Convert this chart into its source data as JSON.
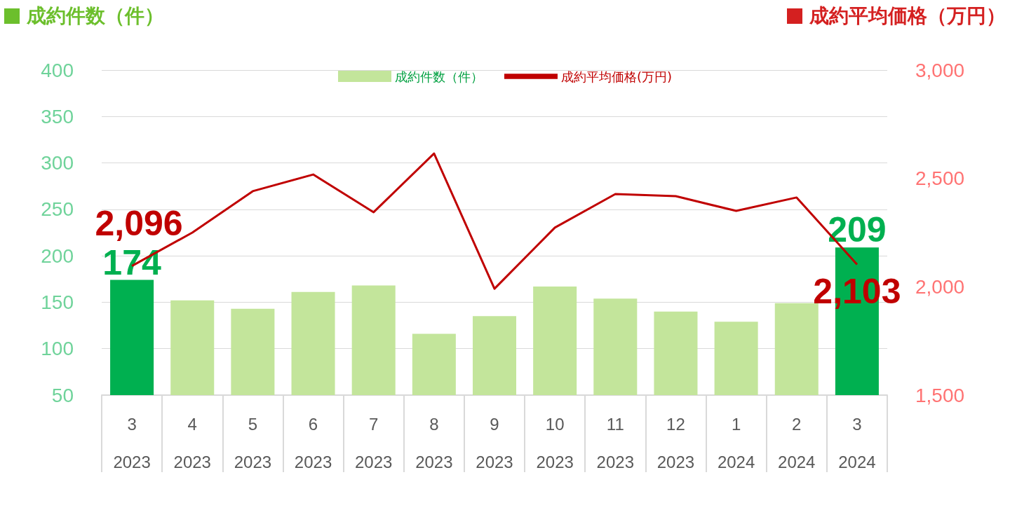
{
  "chart_data": {
    "type": "bar",
    "ylabel": "成約件数（件）",
    "y2label": "成約平均価格（万円）",
    "categories": [
      "3\n2023",
      "4\n2023",
      "5\n2023",
      "6\n2023",
      "7\n2023",
      "8\n2023",
      "9\n2023",
      "10\n2023",
      "11\n2023",
      "12\n2023",
      "1\n2024",
      "2\n2024",
      "3\n2024"
    ],
    "series": [
      {
        "name": "成約件数（件）",
        "colors": [
          "#00b050",
          "#c3e59b",
          "#c3e59b",
          "#c3e59b",
          "#c3e59b",
          "#c3e59b",
          "#c3e59b",
          "#c3e59b",
          "#c3e59b",
          "#c3e59b",
          "#c3e59b",
          "#c3e59b",
          "#00b050"
        ],
        "values": [
          174,
          152,
          143,
          161,
          168,
          116,
          135,
          167,
          154,
          140,
          129,
          149,
          209
        ],
        "value_labels": [
          "174",
          null,
          null,
          null,
          null,
          null,
          null,
          null,
          null,
          null,
          null,
          null,
          "209"
        ]
      },
      {
        "name": "成約平均価格(万円)",
        "type": "line",
        "axis": "y2",
        "color": "#c00000",
        "values": [
          2096,
          2250,
          2441,
          2518,
          2344,
          2615,
          1991,
          2273,
          2428,
          2418,
          2350,
          2412,
          2103
        ],
        "value_labels": [
          "2,096",
          null,
          null,
          null,
          null,
          null,
          null,
          null,
          null,
          null,
          null,
          null,
          "2,103"
        ]
      }
    ],
    "ylim": [
      50,
      400
    ],
    "yticks": [
      50,
      100,
      150,
      200,
      250,
      300,
      350,
      400
    ],
    "y2lim": [
      1500,
      3000
    ],
    "y2ticks": [
      {
        "value": 1500,
        "label": "1,500"
      },
      {
        "value": 2000,
        "label": "2,000"
      },
      {
        "value": 2500,
        "label": "2,500"
      },
      {
        "value": 3000,
        "label": "3,000"
      }
    ],
    "grid": "y",
    "legend": "top",
    "marker": "none",
    "line_style": "solid"
  }
}
